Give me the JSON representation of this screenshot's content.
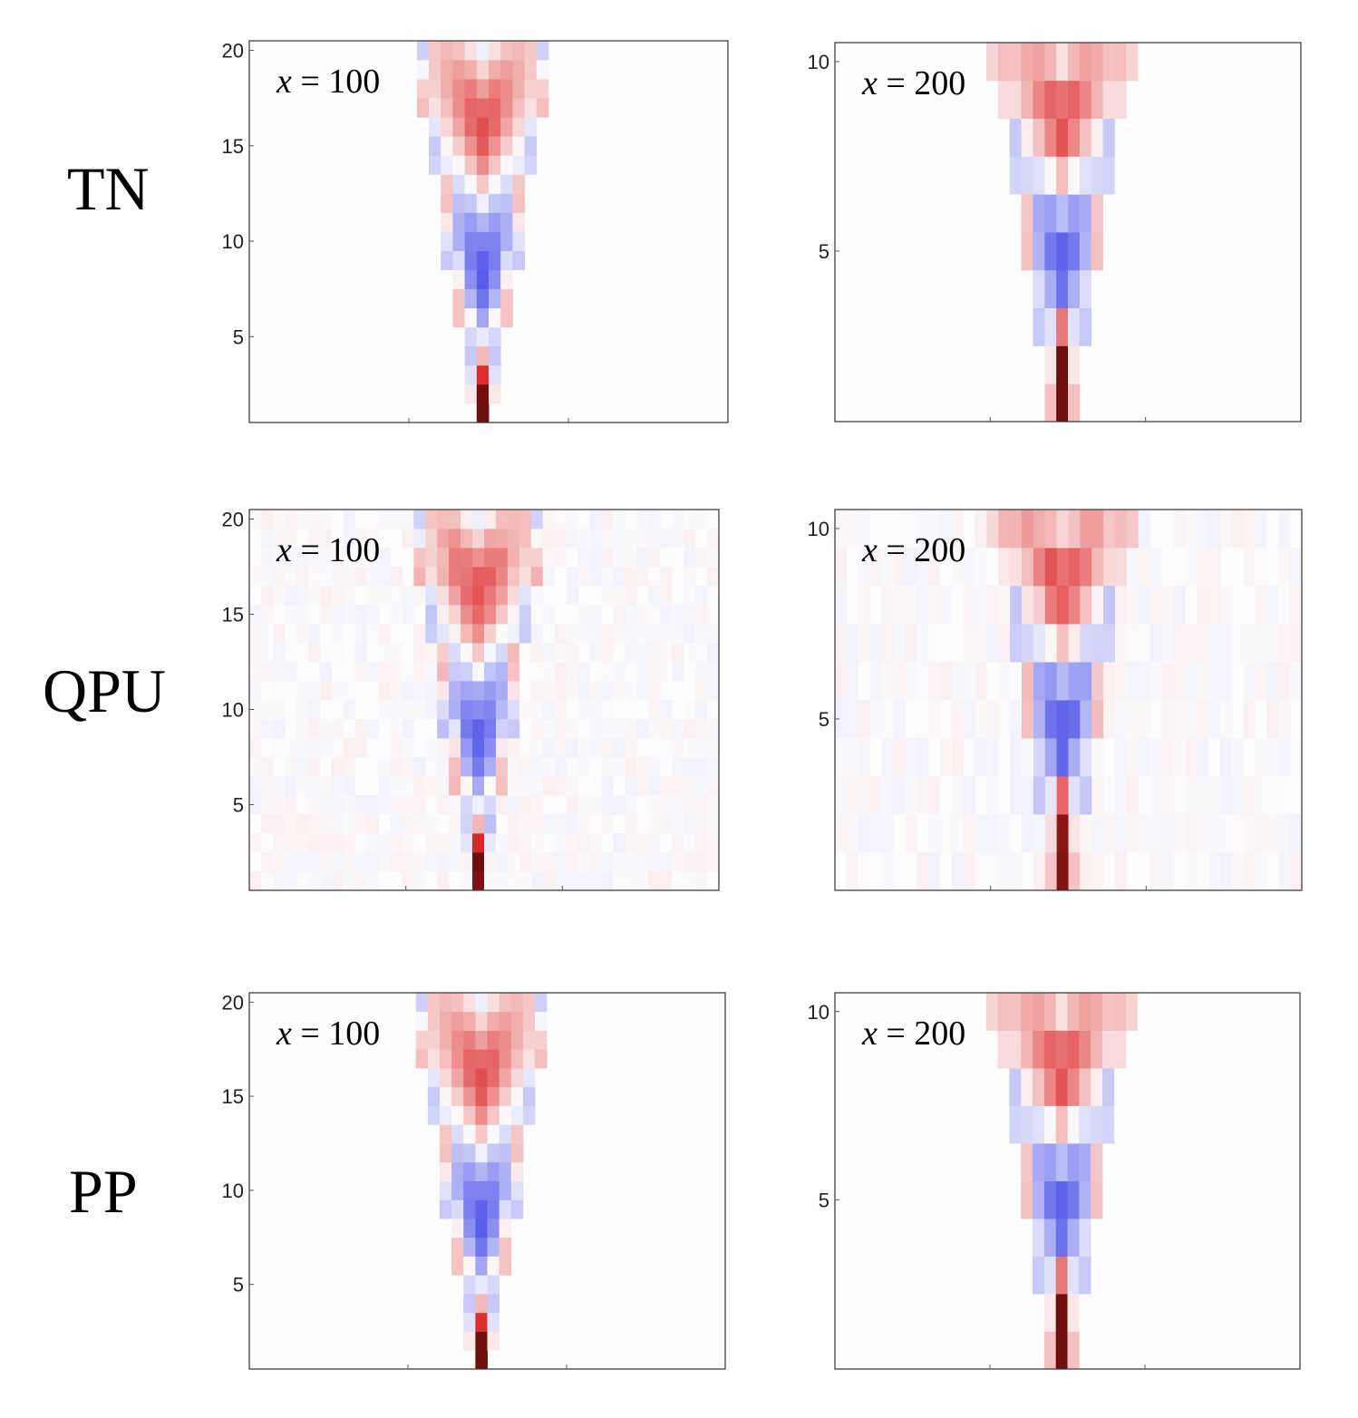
{
  "row_labels": [
    "TN",
    "QPU",
    "PP"
  ],
  "colors": {
    "positive": "#c0282c",
    "deep_positive": "#6e0f0f",
    "negative": "#3a3fe6",
    "background": "#fdfdfe"
  },
  "chart_data": [
    {
      "type": "heatmap",
      "row": "TN",
      "title_var": "x",
      "title_eq": "= 100",
      "ylim": [
        0.5,
        20.5
      ],
      "yticks": [
        5,
        10,
        15,
        20
      ],
      "sites": 40,
      "center_col": 19,
      "noise": 0.0
    },
    {
      "type": "heatmap",
      "row": "TN",
      "title_var": "x",
      "title_eq": "= 200",
      "ylim": [
        0.5,
        10.5
      ],
      "yticks": [
        5,
        10
      ],
      "sites": 40,
      "center_col": 19,
      "noise": 0.0
    },
    {
      "type": "heatmap",
      "row": "QPU",
      "title_var": "x",
      "title_eq": "= 100",
      "ylim": [
        0.5,
        20.5
      ],
      "yticks": [
        5,
        10,
        15,
        20
      ],
      "sites": 40,
      "center_col": 19,
      "noise": 0.06
    },
    {
      "type": "heatmap",
      "row": "QPU",
      "title_var": "x",
      "title_eq": "= 200",
      "ylim": [
        0.5,
        10.5
      ],
      "yticks": [
        5,
        10
      ],
      "sites": 40,
      "center_col": 19,
      "noise": 0.06
    },
    {
      "type": "heatmap",
      "row": "PP",
      "title_var": "x",
      "title_eq": "= 100",
      "ylim": [
        0.5,
        20.5
      ],
      "yticks": [
        5,
        10,
        15,
        20
      ],
      "sites": 40,
      "center_col": 19,
      "noise": 0.0
    },
    {
      "type": "heatmap",
      "row": "PP",
      "title_var": "x",
      "title_eq": "= 200",
      "ylim": [
        0.5,
        10.5
      ],
      "yticks": [
        5,
        10
      ],
      "sites": 40,
      "center_col": 19,
      "noise": 0.0
    }
  ]
}
